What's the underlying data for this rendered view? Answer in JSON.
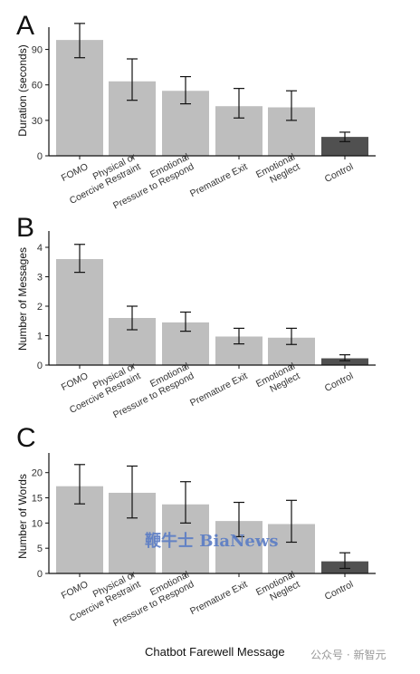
{
  "figure": {
    "x_axis_title": "Chatbot Farewell Message",
    "watermark_center": "鞭牛士 BiaNews",
    "watermark_right": "公众号 · 新智元"
  },
  "chart_data": [
    {
      "panel_label": "A",
      "type": "bar",
      "ylabel": "Duration (seconds)",
      "ylim": [
        0,
        105
      ],
      "yticks": [
        0,
        30,
        60,
        90
      ],
      "categories": [
        "FOMO",
        "Physical or\nCoercive Restraint",
        "Emotional\nPressure to Respond",
        "Premature Exit",
        "Emotional\nNeglect",
        "Control"
      ],
      "values": [
        98,
        63,
        55,
        42,
        41,
        16
      ],
      "error_low": [
        83,
        47,
        44,
        32,
        30,
        12
      ],
      "error_high": [
        112,
        82,
        67,
        57,
        55,
        20
      ],
      "colors": [
        "#bebebe",
        "#bebebe",
        "#bebebe",
        "#bebebe",
        "#bebebe",
        "#505050"
      ],
      "grid": false
    },
    {
      "panel_label": "B",
      "type": "bar",
      "ylabel": "Number of Messages",
      "ylim": [
        0,
        4.4
      ],
      "yticks": [
        0,
        1,
        2,
        3,
        4
      ],
      "categories": [
        "FOMO",
        "Physical or\nCoercive Restraint",
        "Emotional\nPressure to Respond",
        "Premature Exit",
        "Emotional\nNeglect",
        "Control"
      ],
      "values": [
        3.6,
        1.6,
        1.45,
        0.97,
        0.93,
        0.23
      ],
      "error_low": [
        3.15,
        1.2,
        1.15,
        0.72,
        0.7,
        0.15
      ],
      "error_high": [
        4.1,
        2.0,
        1.8,
        1.25,
        1.25,
        0.35
      ],
      "colors": [
        "#bebebe",
        "#bebebe",
        "#bebebe",
        "#bebebe",
        "#bebebe",
        "#505050"
      ],
      "grid": false
    },
    {
      "panel_label": "C",
      "type": "bar",
      "ylabel": "Number of Words",
      "ylim": [
        0,
        23
      ],
      "yticks": [
        0,
        5,
        10,
        15,
        20
      ],
      "categories": [
        "FOMO",
        "Physical or\nCoercive Restraint",
        "Emotional\nPressure to Respond",
        "Premature Exit",
        "Emotional\nNeglect",
        "Control"
      ],
      "values": [
        17.3,
        16,
        13.7,
        10.4,
        9.8,
        2.4
      ],
      "error_low": [
        13.8,
        11,
        10,
        7.3,
        6.2,
        1.0
      ],
      "error_high": [
        21.6,
        21.3,
        18.2,
        14.1,
        14.5,
        4.1
      ],
      "colors": [
        "#bebebe",
        "#bebebe",
        "#bebebe",
        "#bebebe",
        "#bebebe",
        "#505050"
      ],
      "grid": false
    }
  ]
}
